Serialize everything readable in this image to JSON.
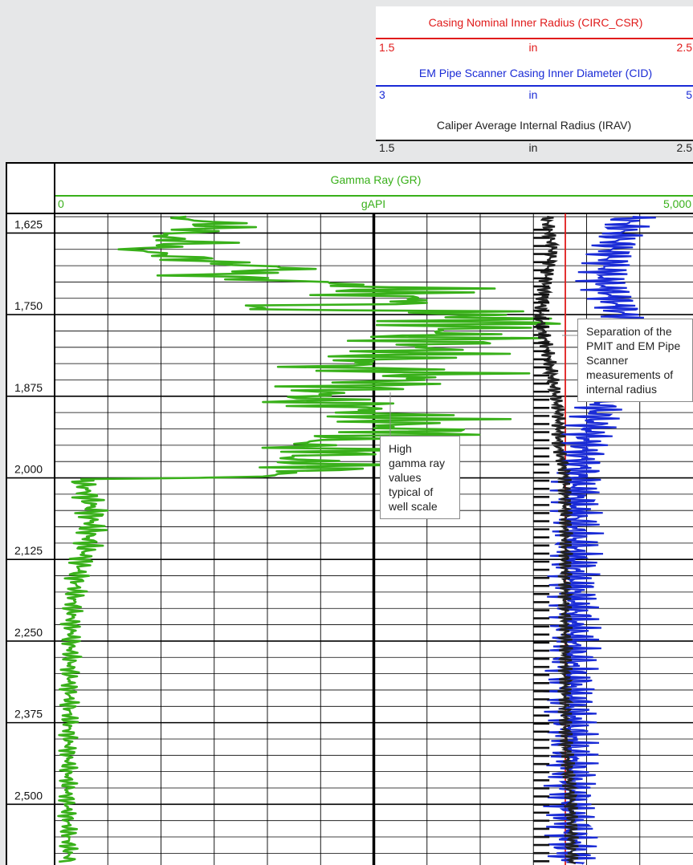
{
  "tracks": {
    "casing_nominal": {
      "title": "Casing Nominal Inner Radius (CIRC_CSR)",
      "unit": "in",
      "min": "1.5",
      "max": "2.5",
      "color": "#e01b1b"
    },
    "em_pipe_scanner": {
      "title": "EM Pipe Scanner Casing Inner Diameter (CID)",
      "unit": "in",
      "min": "3",
      "max": "5",
      "color": "#1a2bd6"
    },
    "caliper": {
      "title": "Caliper Average Internal Radius (IRAV)",
      "unit": "in",
      "min": "1.5",
      "max": "2.5",
      "color": "#222222"
    },
    "gamma_ray": {
      "title": "Gamma Ray (GR)",
      "unit": "gAPI",
      "min": "0",
      "max": "5,000",
      "color": "#39b01a"
    }
  },
  "depth_labels": [
    "1,625",
    "1,750",
    "1,875",
    "2,000",
    "2,125",
    "2,250",
    "2,375",
    "2,500"
  ],
  "annotations": {
    "gamma": "High gamma ray values typical of well scale",
    "separation": "Separation of the PMIT and EM Pipe Scanner measurements of internal radius"
  },
  "chart_data": {
    "type": "line",
    "y_axis": "depth",
    "depth_range": [
      1595,
      2593
    ],
    "depth_ticks": [
      1625,
      1750,
      1875,
      2000,
      2125,
      2250,
      2375,
      2500
    ],
    "grid": true,
    "series": [
      {
        "name": "Gamma Ray (GR)",
        "unit": "gAPI",
        "range": [
          0,
          5000
        ],
        "color": "#39b01a",
        "points": [
          [
            1600,
            900
          ],
          [
            1610,
            1300
          ],
          [
            1620,
            1200
          ],
          [
            1630,
            800
          ],
          [
            1640,
            1150
          ],
          [
            1650,
            600
          ],
          [
            1660,
            950
          ],
          [
            1670,
            1250
          ],
          [
            1680,
            1900
          ],
          [
            1690,
            1100
          ],
          [
            1700,
            2000
          ],
          [
            1710,
            2800
          ],
          [
            1720,
            2500
          ],
          [
            1730,
            3000
          ],
          [
            1740,
            1300
          ],
          [
            1745,
            3050
          ],
          [
            1752,
            3300
          ],
          [
            1760,
            3400
          ],
          [
            1770,
            3200
          ],
          [
            1780,
            3000
          ],
          [
            1790,
            3100
          ],
          [
            1800,
            2900
          ],
          [
            1810,
            2800
          ],
          [
            1820,
            2500
          ],
          [
            1830,
            2200
          ],
          [
            1840,
            3000
          ],
          [
            1850,
            2700
          ],
          [
            1860,
            2400
          ],
          [
            1870,
            2100
          ],
          [
            1880,
            2000
          ],
          [
            1890,
            2300
          ],
          [
            1900,
            2500
          ],
          [
            1910,
            2800
          ],
          [
            1920,
            2600
          ],
          [
            1930,
            3000
          ],
          [
            1940,
            2200
          ],
          [
            1950,
            1900
          ],
          [
            1960,
            2400
          ],
          [
            1970,
            1800
          ],
          [
            1980,
            2200
          ],
          [
            1990,
            2000
          ],
          [
            2000,
            1400
          ],
          [
            2002,
            200
          ],
          [
            2020,
            250
          ],
          [
            2050,
            300
          ],
          [
            2080,
            280
          ],
          [
            2100,
            260
          ],
          [
            2150,
            180
          ],
          [
            2200,
            140
          ],
          [
            2300,
            120
          ],
          [
            2400,
            110
          ],
          [
            2500,
            100
          ],
          [
            2590,
            110
          ]
        ]
      },
      {
        "name": "Casing Nominal Inner Radius (CIRC_CSR)",
        "unit": "in",
        "range": [
          1.5,
          2.5
        ],
        "color": "#e01b1b",
        "points": [
          [
            1595,
            2.3
          ],
          [
            2593,
            2.3
          ]
        ]
      },
      {
        "name": "EM Pipe Scanner Casing Inner Diameter (CID)",
        "unit": "in",
        "range": [
          3,
          5
        ],
        "color": "#1a2bd6",
        "points": [
          [
            1600,
            4.8
          ],
          [
            1650,
            4.75
          ],
          [
            1700,
            4.72
          ],
          [
            1750,
            4.78
          ],
          [
            1800,
            4.76
          ],
          [
            1850,
            4.74
          ],
          [
            1900,
            4.7
          ],
          [
            1950,
            4.66
          ],
          [
            2000,
            4.64
          ],
          [
            2100,
            4.63
          ],
          [
            2200,
            4.63
          ],
          [
            2300,
            4.62
          ],
          [
            2400,
            4.62
          ],
          [
            2500,
            4.62
          ],
          [
            2593,
            4.62
          ]
        ]
      },
      {
        "name": "Caliper Average Internal Radius (IRAV)",
        "unit": "in",
        "range": [
          1.5,
          2.5
        ],
        "color": "#222222",
        "points": [
          [
            1600,
            2.27
          ],
          [
            1650,
            2.28
          ],
          [
            1700,
            2.27
          ],
          [
            1750,
            2.26
          ],
          [
            1800,
            2.27
          ],
          [
            1850,
            2.28
          ],
          [
            1900,
            2.29
          ],
          [
            1950,
            2.29
          ],
          [
            2000,
            2.3
          ],
          [
            2100,
            2.3
          ],
          [
            2200,
            2.3
          ],
          [
            2300,
            2.3
          ],
          [
            2400,
            2.3
          ],
          [
            2500,
            2.31
          ],
          [
            2593,
            2.31
          ]
        ]
      }
    ]
  }
}
